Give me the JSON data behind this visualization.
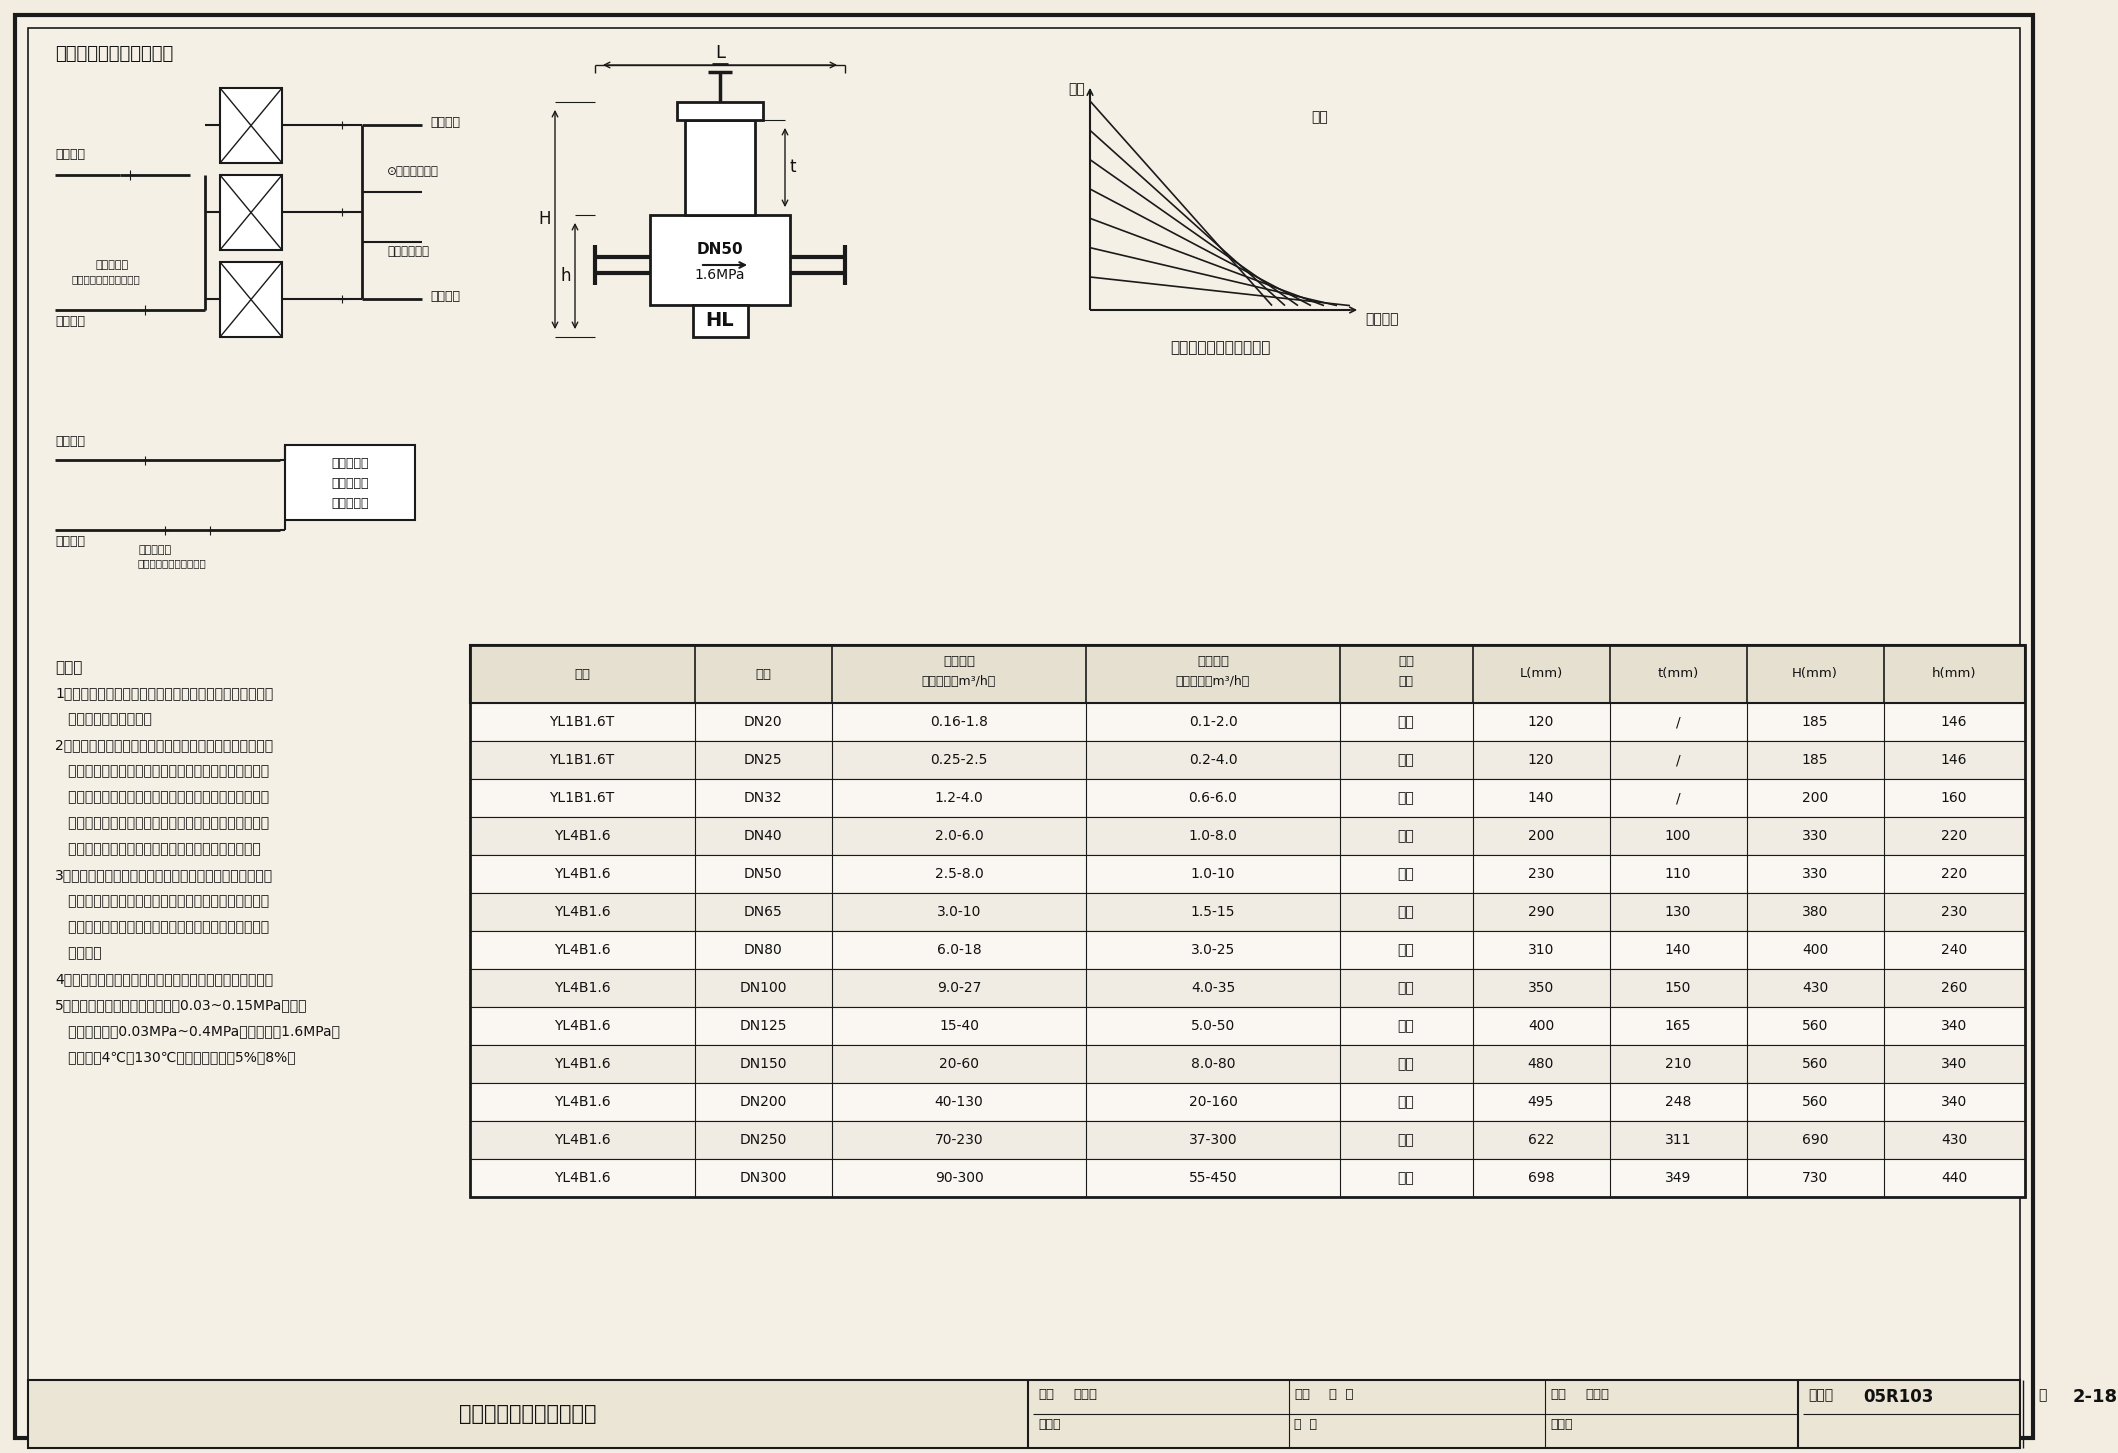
{
  "title": "压差调节阀的安装示意图",
  "bg_color": "#f2ede0",
  "table_headers_row1": [
    "型号",
    "规格",
    "选型流量",
    "最大流量",
    "连接",
    "L(mm)",
    "t(mm)",
    "H(mm)",
    "h(mm)"
  ],
  "table_headers_row2": [
    "",
    "",
    "控制范围（m³/h）",
    "控制范围（m³/h）",
    "方式",
    "",
    "",
    "",
    ""
  ],
  "table_rows": [
    [
      "YL1B1.6T",
      "DN20",
      "0.16-1.8",
      "0.1-2.0",
      "螺纹",
      "120",
      "/",
      "185",
      "146"
    ],
    [
      "YL1B1.6T",
      "DN25",
      "0.25-2.5",
      "0.2-4.0",
      "螺纹",
      "120",
      "/",
      "185",
      "146"
    ],
    [
      "YL1B1.6T",
      "DN32",
      "1.2-4.0",
      "0.6-6.0",
      "螺纹",
      "140",
      "/",
      "200",
      "160"
    ],
    [
      "YL4B1.6",
      "DN40",
      "2.0-6.0",
      "1.0-8.0",
      "法兰",
      "200",
      "100",
      "330",
      "220"
    ],
    [
      "YL4B1.6",
      "DN50",
      "2.5-8.0",
      "1.0-10",
      "法兰",
      "230",
      "110",
      "330",
      "220"
    ],
    [
      "YL4B1.6",
      "DN65",
      "3.0-10",
      "1.5-15",
      "法兰",
      "290",
      "130",
      "380",
      "230"
    ],
    [
      "YL4B1.6",
      "DN80",
      "6.0-18",
      "3.0-25",
      "法兰",
      "310",
      "140",
      "400",
      "240"
    ],
    [
      "YL4B1.6",
      "DN100",
      "9.0-27",
      "4.0-35",
      "法兰",
      "350",
      "150",
      "430",
      "260"
    ],
    [
      "YL4B1.6",
      "DN125",
      "15-40",
      "5.0-50",
      "法兰",
      "400",
      "165",
      "560",
      "340"
    ],
    [
      "YL4B1.6",
      "DN150",
      "20-60",
      "8.0-80",
      "法兰",
      "480",
      "210",
      "560",
      "340"
    ],
    [
      "YL4B1.6",
      "DN200",
      "40-130",
      "20-160",
      "法兰",
      "495",
      "248",
      "560",
      "340"
    ],
    [
      "YL4B1.6",
      "DN250",
      "70-230",
      "37-300",
      "法兰",
      "622",
      "311",
      "690",
      "430"
    ],
    [
      "YL4B1.6",
      "DN300",
      "90-300",
      "55-450",
      "法兰",
      "698",
      "349",
      "730",
      "440"
    ]
  ],
  "footer_title": "压差调节阀的安装（二）",
  "footer_atlas_label": "图集号",
  "footer_atlas_num": "05R103",
  "footer_page_label": "页",
  "footer_page_num": "2-18",
  "footer_items": [
    [
      "审核",
      "徐邦熹",
      "徐郑照"
    ],
    [
      "校对",
      "曹  伟",
      "傅  传"
    ],
    [
      "设计",
      "赵春燕",
      "汪名燕"
    ]
  ],
  "curve_title": "压差流量调控阀特性曲线",
  "curve_xlabel": "内网差压",
  "curve_ylabel": "流量",
  "curve_label": "开度",
  "note_lines": [
    "说明：",
    "1、本图依据北京天箭星机电技术有限公司《压差流量调控",
    "   阀》的技术资料编制。",
    "2、安装位置：在一次网中可采用压差流量调控阀对具有多",
    "   台换热器的换热站进行控制，须装在总回水管上，取压",
    "   管接在总供水管上；在二次网中，安装散热器恒温控制",
    "   阀的建筑热力入口应采用压差流量调控阀，多层建筑装",
    "   在供水管或回水管均可，高层建筑宜装在回水管上。",
    "3、调节方法：手动将阀门调节至内网所需的最大流量的刻",
    "   度，当外网压差在控制范围内变化时可自动保持内网的",
    "   流量恒定；当内网阻力变化时可自动改变流量并保持压",
    "   差恒定。",
    "4、选型定货应提供阀门安装位置并提供内网压差预设值。",
    "5、技术指标：内网压差预设范围0.03~0.15MPa；外网",
    "   压差控制范围0.03MPa~0.4MPa；工作压力1.6MPa；",
    "   工作温度4℃～130℃；流量相对误差5%～8%。"
  ]
}
